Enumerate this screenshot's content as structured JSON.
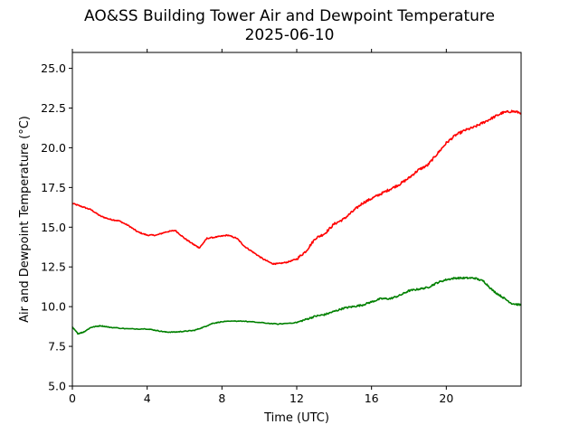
{
  "chart_data": {
    "type": "line",
    "title": "AO&SS Building Tower Air and Dewpoint Temperature",
    "subtitle": "2025-06-10",
    "xlabel": "Time (UTC)",
    "ylabel": "Air and Dewpoint Temperature (°C)",
    "xlim": [
      0,
      24
    ],
    "ylim": [
      5.0,
      26.0
    ],
    "x_ticks": [
      0,
      4,
      8,
      12,
      16,
      20
    ],
    "x_tick_labels": [
      "0",
      "4",
      "8",
      "12",
      "16",
      "20"
    ],
    "y_ticks": [
      5.0,
      7.5,
      10.0,
      12.5,
      15.0,
      17.5,
      20.0,
      22.5,
      25.0
    ],
    "y_tick_labels": [
      "5.0",
      "7.5",
      "10.0",
      "12.5",
      "15.0",
      "17.5",
      "20.0",
      "22.5",
      "25.0"
    ],
    "grid": false,
    "legend": false,
    "series": [
      {
        "color": "#ff0000",
        "points": [
          [
            0,
            16.5
          ],
          [
            0.5,
            16.3
          ],
          [
            1,
            16.1
          ],
          [
            1.5,
            15.7
          ],
          [
            2,
            15.5
          ],
          [
            2.5,
            15.4
          ],
          [
            3,
            15.1
          ],
          [
            3.5,
            14.7
          ],
          [
            4,
            14.5
          ],
          [
            4.5,
            14.5
          ],
          [
            5,
            14.7
          ],
          [
            5.5,
            14.8
          ],
          [
            6,
            14.3
          ],
          [
            6.5,
            13.9
          ],
          [
            6.8,
            13.7
          ],
          [
            7.2,
            14.3
          ],
          [
            7.8,
            14.4
          ],
          [
            8.3,
            14.5
          ],
          [
            8.8,
            14.3
          ],
          [
            9.2,
            13.8
          ],
          [
            9.7,
            13.4
          ],
          [
            10.2,
            13.0
          ],
          [
            10.7,
            12.7
          ],
          [
            11,
            12.7
          ],
          [
            11.5,
            12.8
          ],
          [
            12,
            13.0
          ],
          [
            12.5,
            13.5
          ],
          [
            13,
            14.3
          ],
          [
            13.5,
            14.6
          ],
          [
            14,
            15.2
          ],
          [
            14.5,
            15.5
          ],
          [
            15,
            16.0
          ],
          [
            15.5,
            16.5
          ],
          [
            16,
            16.8
          ],
          [
            16.5,
            17.1
          ],
          [
            17,
            17.4
          ],
          [
            17.5,
            17.7
          ],
          [
            18,
            18.1
          ],
          [
            18.5,
            18.6
          ],
          [
            19,
            18.9
          ],
          [
            19.5,
            19.6
          ],
          [
            20,
            20.3
          ],
          [
            20.5,
            20.8
          ],
          [
            21,
            21.1
          ],
          [
            21.5,
            21.3
          ],
          [
            22,
            21.6
          ],
          [
            22.5,
            21.9
          ],
          [
            23,
            22.2
          ],
          [
            23.5,
            22.3
          ],
          [
            24,
            22.2
          ]
        ]
      },
      {
        "color": "#008000",
        "points": [
          [
            0,
            8.7
          ],
          [
            0.3,
            8.3
          ],
          [
            0.6,
            8.4
          ],
          [
            1,
            8.7
          ],
          [
            1.5,
            8.8
          ],
          [
            2,
            8.7
          ],
          [
            3,
            8.6
          ],
          [
            4,
            8.6
          ],
          [
            4.5,
            8.5
          ],
          [
            5,
            8.4
          ],
          [
            5.5,
            8.4
          ],
          [
            6,
            8.45
          ],
          [
            6.5,
            8.5
          ],
          [
            7,
            8.7
          ],
          [
            7.5,
            8.95
          ],
          [
            8,
            9.05
          ],
          [
            9,
            9.1
          ],
          [
            10,
            9.0
          ],
          [
            11,
            8.9
          ],
          [
            12,
            9.0
          ],
          [
            12.5,
            9.2
          ],
          [
            13,
            9.4
          ],
          [
            13.5,
            9.5
          ],
          [
            14,
            9.7
          ],
          [
            14.5,
            9.9
          ],
          [
            15,
            10.0
          ],
          [
            15.5,
            10.1
          ],
          [
            16,
            10.3
          ],
          [
            16.5,
            10.5
          ],
          [
            17,
            10.5
          ],
          [
            17.5,
            10.7
          ],
          [
            18,
            11.0
          ],
          [
            18.5,
            11.1
          ],
          [
            19,
            11.2
          ],
          [
            19.5,
            11.5
          ],
          [
            20,
            11.7
          ],
          [
            20.5,
            11.8
          ],
          [
            21,
            11.8
          ],
          [
            21.5,
            11.8
          ],
          [
            22,
            11.6
          ],
          [
            22.5,
            11.0
          ],
          [
            23,
            10.6
          ],
          [
            23.5,
            10.2
          ],
          [
            24,
            10.1
          ]
        ]
      }
    ]
  }
}
